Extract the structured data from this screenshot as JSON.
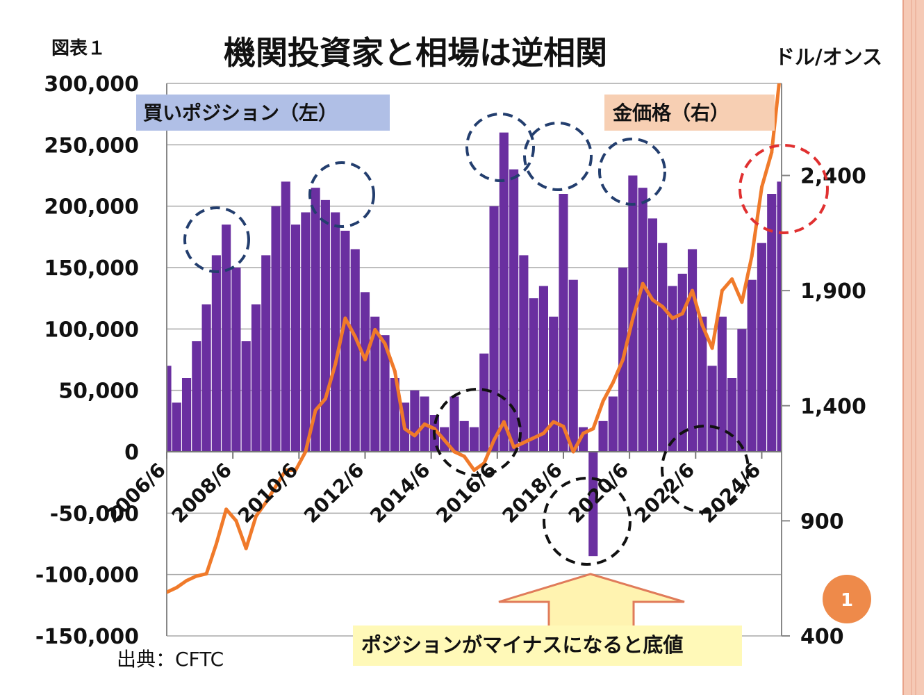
{
  "figure_label": "図表１",
  "title": "機関投資家と相場は逆相関",
  "right_unit": "ドル/オンス",
  "source": "出典：CFTC",
  "slide_number": "1",
  "callout": "ポジションがマイナスになると底値",
  "colors": {
    "position_bar": "#6a2fa0",
    "gold_line": "#f07a2a",
    "left_label_bg": "#b0bfe6",
    "right_label_bg": "#f7cfb3",
    "callout_bg": "#fff9b8",
    "arrow_fill": "#fff3b0",
    "arrow_stroke": "#e07b5a",
    "peak_circle": "#233e6e",
    "trough_circle": "#111111",
    "current_circle": "#e03030",
    "slide_badge": "#ee8a4a",
    "right_border": "#f5c9b5"
  },
  "chart_data": {
    "type": "bar",
    "x_tick_labels": [
      "2006/6",
      "2008/6",
      "2010/6",
      "2012/6",
      "2014/6",
      "2016/6",
      "2018/6",
      "2020/6",
      "2022/6",
      "2024/6"
    ],
    "x_range": [
      2006.4,
      2025.0
    ],
    "left_axis": {
      "range": [
        -150000,
        300000
      ],
      "ticks": [
        -150000,
        -100000,
        -50000,
        0,
        50000,
        100000,
        150000,
        200000,
        250000,
        300000
      ],
      "tick_labels": [
        "-150,000",
        "-100,000",
        "-50,000",
        "0",
        "50,000",
        "100,000",
        "150,000",
        "200,000",
        "250,000",
        "300,000"
      ]
    },
    "right_axis": {
      "range": [
        400,
        2800
      ],
      "ticks": [
        400,
        900,
        1400,
        1900,
        2400
      ],
      "tick_labels": [
        "400",
        "900",
        "1,400",
        "1,900",
        "2,400"
      ]
    },
    "grid": "horizontal",
    "series": [
      {
        "name": "買いポジション（左）",
        "type": "bar",
        "axis": "left",
        "x": [
          2006.4,
          2006.7,
          2007.0,
          2007.3,
          2007.6,
          2007.9,
          2008.2,
          2008.5,
          2008.8,
          2009.1,
          2009.4,
          2009.7,
          2010.0,
          2010.3,
          2010.6,
          2010.9,
          2011.2,
          2011.5,
          2011.8,
          2012.1,
          2012.4,
          2012.7,
          2013.0,
          2013.3,
          2013.6,
          2013.9,
          2014.2,
          2014.5,
          2014.8,
          2015.1,
          2015.4,
          2015.7,
          2016.0,
          2016.3,
          2016.6,
          2016.9,
          2017.2,
          2017.5,
          2017.8,
          2018.1,
          2018.4,
          2018.7,
          2019.0,
          2019.3,
          2019.6,
          2019.9,
          2020.2,
          2020.5,
          2020.8,
          2021.1,
          2021.4,
          2021.7,
          2022.0,
          2022.3,
          2022.6,
          2022.9,
          2023.2,
          2023.5,
          2023.8,
          2024.1,
          2024.4,
          2024.7,
          2025.0
        ],
        "values": [
          70000,
          40000,
          60000,
          90000,
          120000,
          160000,
          185000,
          150000,
          90000,
          120000,
          160000,
          200000,
          220000,
          185000,
          195000,
          215000,
          205000,
          195000,
          180000,
          165000,
          130000,
          110000,
          95000,
          60000,
          40000,
          50000,
          45000,
          30000,
          20000,
          45000,
          25000,
          20000,
          80000,
          200000,
          260000,
          230000,
          160000,
          125000,
          135000,
          110000,
          210000,
          140000,
          20000,
          -85000,
          25000,
          45000,
          150000,
          225000,
          215000,
          190000,
          170000,
          135000,
          145000,
          165000,
          110000,
          70000,
          110000,
          60000,
          100000,
          140000,
          170000,
          210000,
          220000
        ]
      },
      {
        "name": "金価格（右）",
        "type": "line",
        "axis": "right",
        "x": [
          2006.4,
          2006.7,
          2007.0,
          2007.3,
          2007.6,
          2007.9,
          2008.2,
          2008.5,
          2008.8,
          2009.1,
          2009.4,
          2009.7,
          2010.0,
          2010.3,
          2010.6,
          2010.9,
          2011.2,
          2011.5,
          2011.8,
          2012.1,
          2012.4,
          2012.7,
          2013.0,
          2013.3,
          2013.6,
          2013.9,
          2014.2,
          2014.5,
          2014.8,
          2015.1,
          2015.4,
          2015.7,
          2016.0,
          2016.3,
          2016.6,
          2016.9,
          2017.2,
          2017.5,
          2017.8,
          2018.1,
          2018.4,
          2018.7,
          2019.0,
          2019.3,
          2019.6,
          2019.9,
          2020.2,
          2020.5,
          2020.8,
          2021.1,
          2021.4,
          2021.7,
          2022.0,
          2022.3,
          2022.6,
          2022.9,
          2023.2,
          2023.5,
          2023.8,
          2024.1,
          2024.4,
          2024.7,
          2025.0
        ],
        "values": [
          590,
          610,
          640,
          660,
          670,
          800,
          950,
          900,
          780,
          920,
          980,
          1050,
          1120,
          1120,
          1200,
          1380,
          1430,
          1580,
          1780,
          1700,
          1600,
          1730,
          1670,
          1550,
          1300,
          1270,
          1320,
          1300,
          1250,
          1200,
          1180,
          1120,
          1150,
          1250,
          1330,
          1220,
          1240,
          1260,
          1280,
          1330,
          1310,
          1200,
          1280,
          1300,
          1420,
          1500,
          1600,
          1780,
          1930,
          1860,
          1830,
          1780,
          1800,
          1900,
          1750,
          1650,
          1900,
          1950,
          1850,
          2050,
          2350,
          2500,
          2900
        ]
      }
    ]
  }
}
